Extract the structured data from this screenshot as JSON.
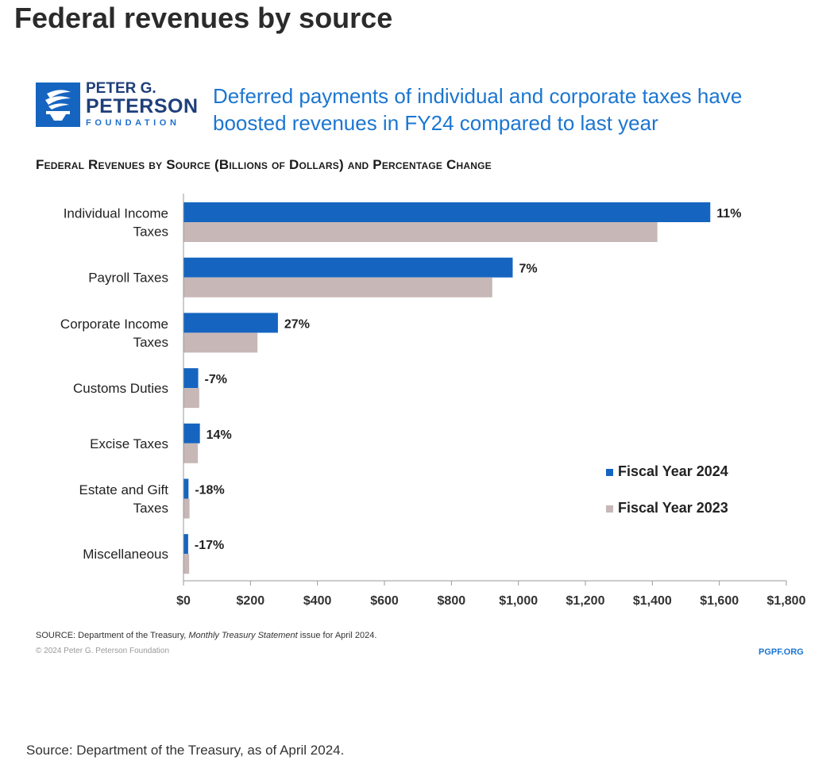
{
  "page": {
    "title": "Federal revenues by source",
    "footer_source": "Source: Department of the Treasury, as of April 2024."
  },
  "logo": {
    "line1": "PETER G.",
    "line2": "PETERSON",
    "line3": "FOUNDATION",
    "icon": "torch-icon",
    "color": "#1565c0"
  },
  "figure": {
    "headline": "Deferred payments of individual and corporate taxes have boosted revenues in FY24 compared to last year",
    "source_prefix": "SOURCE: Department of the Treasury,",
    "source_publication": "Monthly Treasury Statement",
    "source_suffix": "issue for April 2024.",
    "copyright": "© 2024 Peter G. Peterson Foundation",
    "site": "PGPF.ORG"
  },
  "chart_data": {
    "type": "bar",
    "orientation": "horizontal",
    "title": "Federal Revenues by Source (Billions of Dollars) and Percentage Change",
    "categories": [
      [
        "Individual Income",
        "Taxes"
      ],
      [
        "Payroll Taxes"
      ],
      [
        "Corporate Income",
        "Taxes"
      ],
      [
        "Customs Duties"
      ],
      [
        "Excise Taxes"
      ],
      [
        "Estate and Gift",
        "Taxes"
      ],
      [
        "Miscellaneous"
      ]
    ],
    "series": [
      {
        "name": "Fiscal Year 2024",
        "color": "#1565c0",
        "values": [
          1573,
          983,
          282,
          44,
          49,
          15,
          14
        ]
      },
      {
        "name": "Fiscal Year 2023",
        "color": "#c7b7b7",
        "values": [
          1415,
          922,
          221,
          47,
          43,
          18,
          17
        ]
      }
    ],
    "pct_change": [
      "11%",
      "7%",
      "27%",
      "-7%",
      "14%",
      "-18%",
      "-17%"
    ],
    "x_ticks": [
      "$0",
      "$200",
      "$400",
      "$600",
      "$800",
      "$1,000",
      "$1,200",
      "$1,400",
      "$1,600",
      "$1,800"
    ],
    "xlim": [
      0,
      1800
    ],
    "grid": false,
    "legend_position": "right"
  }
}
